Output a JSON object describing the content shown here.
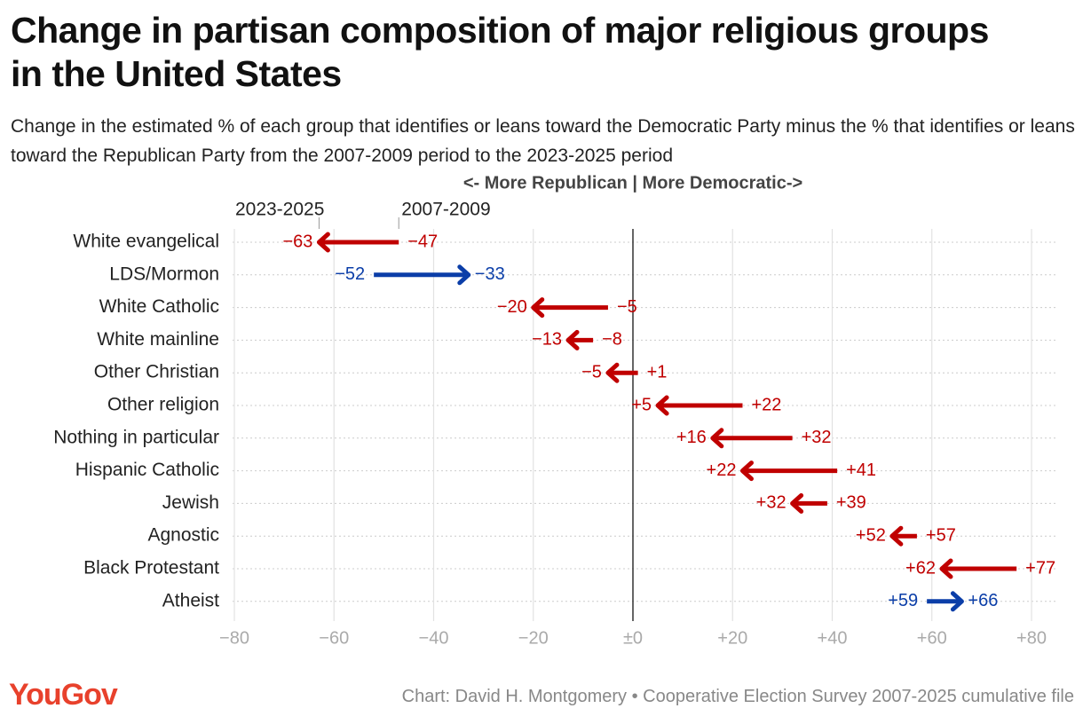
{
  "chart_data": {
    "type": "arrow",
    "title": "Change in partisan composition of major religious groups in the United States",
    "subtitle": "Change in the estimated % of each group that identifies or leans toward the Democratic Party minus the % that identifies or leans toward the Republican Party from the 2007-2009 period to the 2023-2025 period",
    "axis_note": "<- More Republican | More Democratic->",
    "categories": [
      "White evangelical",
      "LDS/Mormon",
      "White Catholic",
      "White mainline",
      "Other Christian",
      "Other religion",
      "Nothing in particular",
      "Hispanic Catholic",
      "Jewish",
      "Agnostic",
      "Black Protestant",
      "Atheist"
    ],
    "series": [
      {
        "name": "2007-2009",
        "values": [
          -47,
          -52,
          -5,
          -8,
          1,
          22,
          32,
          41,
          39,
          57,
          77,
          59
        ],
        "value_labels": [
          "−47",
          "−52",
          "−5",
          "−8",
          "+1",
          "+22",
          "+32",
          "+41",
          "+39",
          "+57",
          "+77",
          "+59"
        ]
      },
      {
        "name": "2023-2025",
        "values": [
          -63,
          -33,
          -20,
          -13,
          -5,
          5,
          16,
          22,
          32,
          52,
          62,
          66
        ],
        "value_labels": [
          "−63",
          "−33",
          "−20",
          "−13",
          "−5",
          "+5",
          "+16",
          "+22",
          "+32",
          "+52",
          "+62",
          "+66"
        ]
      }
    ],
    "arrow_colors": {
      "more_republican": "#c00000",
      "more_democratic": "#0b3ea8"
    },
    "xlim": [
      -80,
      80
    ],
    "xticks": [
      {
        "value": -80,
        "label": "−80"
      },
      {
        "value": -60,
        "label": "−60"
      },
      {
        "value": -40,
        "label": "−40"
      },
      {
        "value": -20,
        "label": "−20"
      },
      {
        "value": 0,
        "label": "±0"
      },
      {
        "value": 20,
        "label": "+20"
      },
      {
        "value": 40,
        "label": "+40"
      },
      {
        "value": 60,
        "label": "+60"
      },
      {
        "value": 80,
        "label": "+80"
      }
    ],
    "grid": true,
    "source": "Chart: David H. Montgomery • Cooperative Election Survey 2007-2025 cumulative file",
    "logo": "YouGov"
  }
}
